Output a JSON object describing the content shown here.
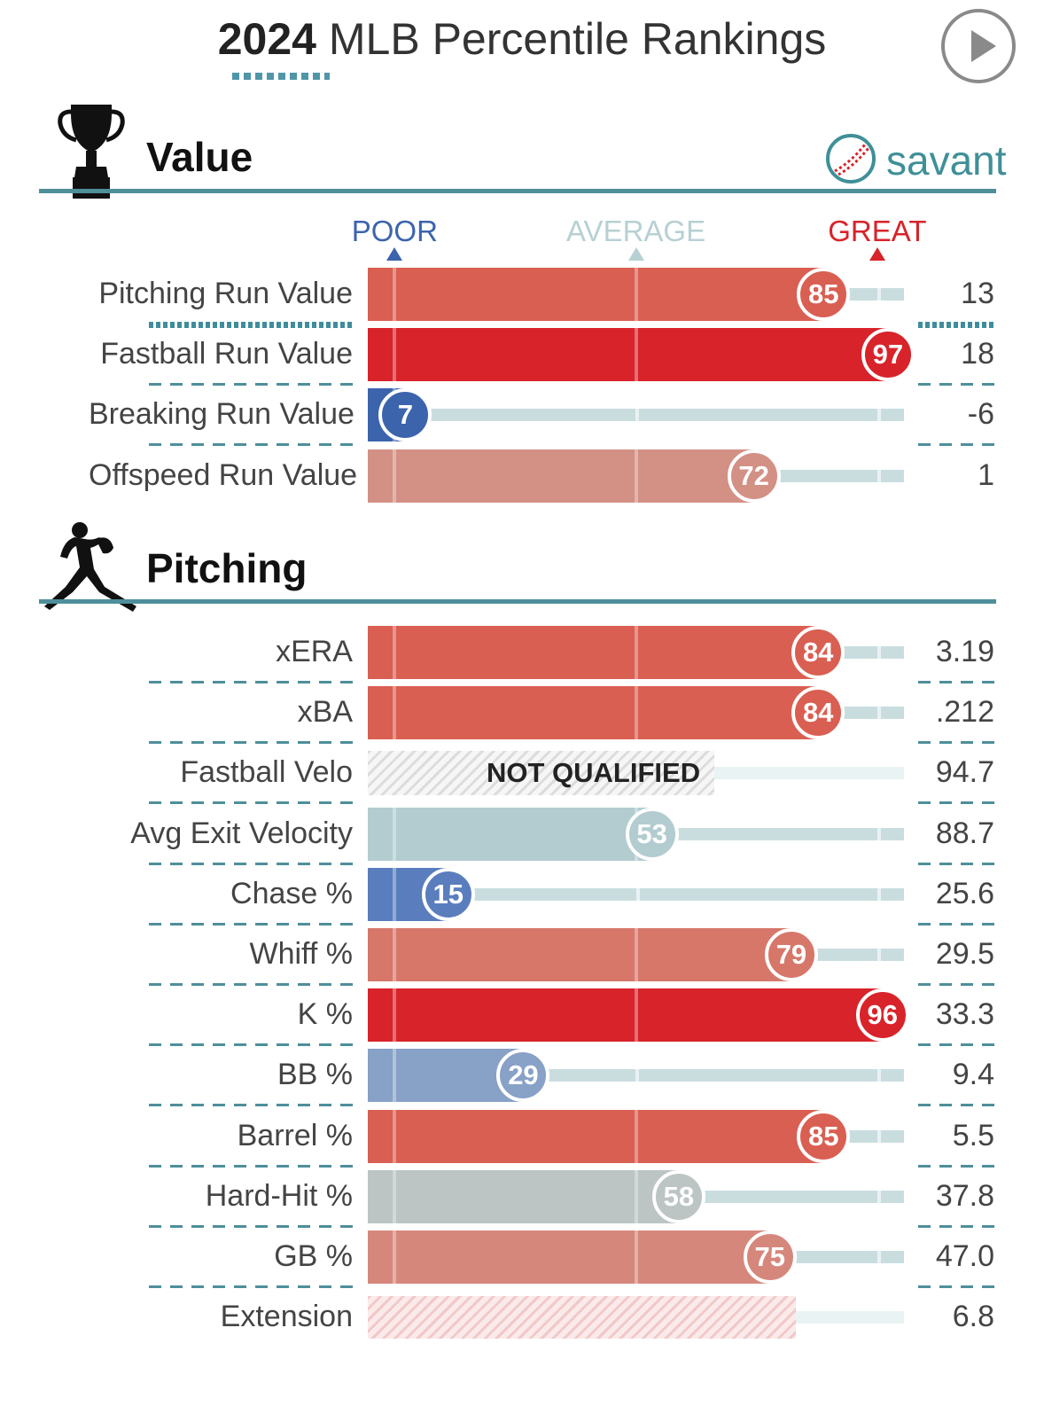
{
  "header": {
    "title_year": "2024",
    "title_rest": "MLB Percentile Rankings",
    "play_icon": "play-icon"
  },
  "brand": {
    "name": "savant",
    "logo_icon": "baseball-icon"
  },
  "sections": {
    "value": {
      "title": "Value",
      "icon": "trophy-icon"
    },
    "pitching": {
      "title": "Pitching",
      "icon": "pitcher-icon"
    }
  },
  "legend": {
    "poor": "POOR",
    "average": "AVERAGE",
    "great": "GREAT",
    "colors": {
      "poor": "#3c64ad",
      "average": "#b7d0d3",
      "great": "#d8232a"
    }
  },
  "chart_data": {
    "type": "bar",
    "orientation": "horizontal",
    "x_range": [
      0,
      100
    ],
    "markers": {
      "poor": 5,
      "average": 50,
      "great": 95
    },
    "not_qualified_label": "NOT QUALIFIED",
    "groups": [
      {
        "name": "Value",
        "rows": [
          {
            "label": "Pitching Run Value",
            "percentile": 85,
            "value": "13",
            "color": "#d95f52"
          },
          {
            "label": "Fastball Run Value",
            "percentile": 97,
            "value": "18",
            "color": "#d8232a"
          },
          {
            "label": "Breaking Run Value",
            "percentile": 7,
            "value": "-6",
            "color": "#3c64ad"
          },
          {
            "label": "Offspeed Run Value",
            "percentile": 72,
            "value": "1",
            "color": "#d39084"
          }
        ]
      },
      {
        "name": "Pitching",
        "rows": [
          {
            "label": "xERA",
            "percentile": 84,
            "value": "3.19",
            "color": "#d95f52"
          },
          {
            "label": "xBA",
            "percentile": 84,
            "value": ".212",
            "color": "#d95f52"
          },
          {
            "label": "Fastball Velo",
            "percentile": null,
            "value": "94.7",
            "status": "not_qualified"
          },
          {
            "label": "Avg Exit Velocity",
            "percentile": 53,
            "value": "88.7",
            "color": "#b2ccd0"
          },
          {
            "label": "Chase %",
            "percentile": 15,
            "value": "25.6",
            "color": "#5a7ebd"
          },
          {
            "label": "Whiff %",
            "percentile": 79,
            "value": "29.5",
            "color": "#d6776a"
          },
          {
            "label": "K %",
            "percentile": 96,
            "value": "33.3",
            "color": "#d8232a"
          },
          {
            "label": "BB %",
            "percentile": 29,
            "value": "9.4",
            "color": "#87a1c7"
          },
          {
            "label": "Barrel %",
            "percentile": 85,
            "value": "5.5",
            "color": "#d95f52"
          },
          {
            "label": "Hard-Hit %",
            "percentile": 58,
            "value": "37.8",
            "color": "#bcc4c4"
          },
          {
            "label": "GB %",
            "percentile": 75,
            "value": "47.0",
            "color": "#d6877c"
          },
          {
            "label": "Extension",
            "percentile": null,
            "value": "6.8",
            "status": "hatched"
          }
        ]
      }
    ]
  }
}
